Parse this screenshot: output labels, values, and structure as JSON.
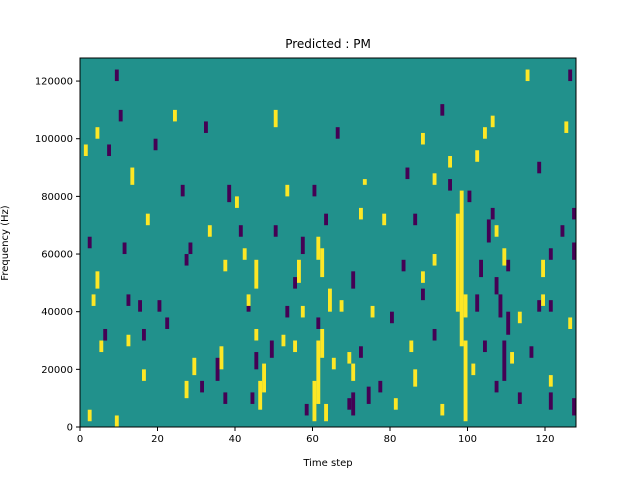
{
  "chart_data": {
    "type": "heatmap",
    "title": "Predicted : PM",
    "xlabel": "Time step",
    "ylabel": "Frequency (Hz)",
    "xlim": [
      0,
      128
    ],
    "ylim": [
      0,
      128000
    ],
    "x_ticks": [
      0,
      20,
      40,
      60,
      80,
      100,
      120
    ],
    "x_tick_labels": [
      "0",
      "20",
      "40",
      "60",
      "80",
      "100",
      "120"
    ],
    "y_ticks": [
      0,
      20000,
      40000,
      60000,
      80000,
      100000,
      120000
    ],
    "y_tick_labels": [
      "0",
      "20000",
      "40000",
      "60000",
      "80000",
      "100000",
      "120000"
    ],
    "grid": false,
    "colormap": "viridis",
    "value_levels": [
      -1,
      0,
      1
    ],
    "background_value": 0,
    "colors": {
      "-1": "#440154",
      "0": "#21918c",
      "1": "#fde725"
    },
    "bin_width_time": 1,
    "bin_height_hz": 4000,
    "cells_high": [
      [
        99,
        2000,
        30000
      ],
      [
        98,
        28000,
        82000
      ],
      [
        97,
        40000,
        74000
      ],
      [
        99,
        38000,
        46000
      ],
      [
        60,
        2000,
        16000
      ],
      [
        61,
        8000,
        30000
      ],
      [
        62,
        24000,
        34000
      ],
      [
        63,
        2000,
        8000
      ],
      [
        46,
        6000,
        16000
      ],
      [
        47,
        12000,
        22000
      ],
      [
        45,
        30000,
        34000
      ],
      [
        45,
        48000,
        58000
      ],
      [
        64,
        40000,
        48000
      ],
      [
        62,
        52000,
        62000
      ],
      [
        61,
        58000,
        66000
      ],
      [
        65,
        20000,
        24000
      ],
      [
        2,
        2000,
        6000
      ],
      [
        3,
        42000,
        46000
      ],
      [
        4,
        48000,
        54000
      ],
      [
        5,
        26000,
        30000
      ],
      [
        9,
        0,
        4000
      ],
      [
        13,
        84000,
        90000
      ],
      [
        12,
        28000,
        32000
      ],
      [
        16,
        16000,
        20000
      ],
      [
        17,
        70000,
        74000
      ],
      [
        24,
        106000,
        110000
      ],
      [
        27,
        10000,
        16000
      ],
      [
        29,
        18000,
        24000
      ],
      [
        36,
        20000,
        28000
      ],
      [
        37,
        54000,
        58000
      ],
      [
        40,
        76000,
        80000
      ],
      [
        42,
        58000,
        62000
      ],
      [
        43,
        42000,
        46000
      ],
      [
        50,
        104000,
        110000
      ],
      [
        52,
        28000,
        32000
      ],
      [
        53,
        80000,
        84000
      ],
      [
        56,
        50000,
        58000
      ],
      [
        57,
        38000,
        42000
      ],
      [
        69,
        22000,
        26000
      ],
      [
        72,
        72000,
        76000
      ],
      [
        73,
        84000,
        86000
      ],
      [
        75,
        38000,
        42000
      ],
      [
        78,
        70000,
        74000
      ],
      [
        81,
        6000,
        10000
      ],
      [
        85,
        26000,
        30000
      ],
      [
        86,
        14000,
        20000
      ],
      [
        88,
        50000,
        54000
      ],
      [
        91,
        84000,
        88000
      ],
      [
        93,
        4000,
        8000
      ],
      [
        95,
        90000,
        94000
      ],
      [
        101,
        18000,
        22000
      ],
      [
        102,
        92000,
        96000
      ],
      [
        104,
        100000,
        104000
      ],
      [
        106,
        104000,
        108000
      ],
      [
        109,
        56000,
        62000
      ],
      [
        111,
        22000,
        26000
      ],
      [
        113,
        36000,
        40000
      ],
      [
        115,
        120000,
        124000
      ],
      [
        119,
        52000,
        58000
      ],
      [
        121,
        14000,
        18000
      ],
      [
        125,
        102000,
        106000
      ],
      [
        126,
        34000,
        38000
      ],
      [
        1,
        94000,
        98000
      ],
      [
        4,
        100000,
        104000
      ],
      [
        88,
        98000,
        102000
      ],
      [
        91,
        56000,
        60000
      ],
      [
        107,
        66000,
        70000
      ],
      [
        119,
        42000,
        46000
      ],
      [
        33,
        66000,
        70000
      ],
      [
        55,
        26000,
        30000
      ],
      [
        67,
        40000,
        44000
      ],
      [
        70,
        16000,
        22000
      ]
    ],
    "cells_low": [
      [
        69,
        6000,
        10000
      ],
      [
        70,
        4000,
        12000
      ],
      [
        74,
        8000,
        14000
      ],
      [
        84,
        86000,
        90000
      ],
      [
        109,
        16000,
        30000
      ],
      [
        108,
        38000,
        46000
      ],
      [
        107,
        46000,
        52000
      ],
      [
        110,
        32000,
        40000
      ],
      [
        105,
        64000,
        72000
      ],
      [
        106,
        72000,
        76000
      ],
      [
        103,
        52000,
        58000
      ],
      [
        102,
        40000,
        46000
      ],
      [
        121,
        58000,
        62000
      ],
      [
        121,
        40000,
        44000
      ],
      [
        121,
        6000,
        12000
      ],
      [
        118,
        88000,
        92000
      ],
      [
        127,
        72000,
        76000
      ],
      [
        127,
        58000,
        64000
      ],
      [
        127,
        4000,
        10000
      ],
      [
        126,
        120000,
        124000
      ],
      [
        9,
        120000,
        124000
      ],
      [
        10,
        106000,
        110000
      ],
      [
        11,
        60000,
        64000
      ],
      [
        12,
        42000,
        46000
      ],
      [
        15,
        40000,
        44000
      ],
      [
        16,
        30000,
        34000
      ],
      [
        20,
        40000,
        44000
      ],
      [
        22,
        34000,
        38000
      ],
      [
        26,
        80000,
        84000
      ],
      [
        27,
        56000,
        60000
      ],
      [
        31,
        12000,
        16000
      ],
      [
        32,
        102000,
        106000
      ],
      [
        35,
        16000,
        24000
      ],
      [
        37,
        8000,
        12000
      ],
      [
        38,
        78000,
        84000
      ],
      [
        41,
        66000,
        70000
      ],
      [
        43,
        40000,
        44000
      ],
      [
        44,
        8000,
        12000
      ],
      [
        49,
        24000,
        30000
      ],
      [
        50,
        66000,
        70000
      ],
      [
        53,
        38000,
        42000
      ],
      [
        55,
        48000,
        52000
      ],
      [
        57,
        60000,
        66000
      ],
      [
        58,
        4000,
        8000
      ],
      [
        61,
        34000,
        38000
      ],
      [
        63,
        70000,
        74000
      ],
      [
        66,
        100000,
        104000
      ],
      [
        70,
        48000,
        54000
      ],
      [
        72,
        24000,
        28000
      ],
      [
        77,
        12000,
        16000
      ],
      [
        80,
        36000,
        40000
      ],
      [
        83,
        54000,
        58000
      ],
      [
        86,
        70000,
        74000
      ],
      [
        91,
        30000,
        34000
      ],
      [
        93,
        108000,
        112000
      ],
      [
        95,
        82000,
        86000
      ],
      [
        104,
        26000,
        30000
      ],
      [
        107,
        12000,
        16000
      ],
      [
        110,
        54000,
        58000
      ],
      [
        113,
        8000,
        12000
      ],
      [
        118,
        40000,
        44000
      ],
      [
        124,
        66000,
        70000
      ],
      [
        116,
        24000,
        28000
      ],
      [
        7,
        94000,
        98000
      ],
      [
        2,
        62000,
        66000
      ],
      [
        6,
        30000,
        34000
      ],
      [
        19,
        96000,
        100000
      ],
      [
        28,
        60000,
        64000
      ],
      [
        45,
        20000,
        26000
      ],
      [
        60,
        80000,
        84000
      ],
      [
        88,
        44000,
        48000
      ],
      [
        100,
        78000,
        82000
      ]
    ]
  }
}
